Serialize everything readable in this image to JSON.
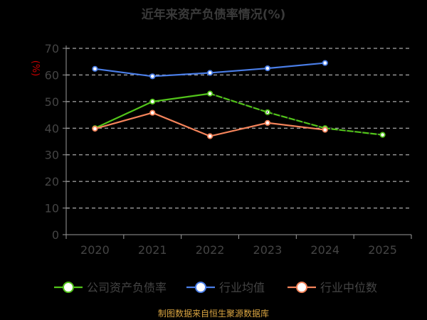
{
  "chart_data": {
    "type": "line",
    "title": "近年来资产负债率情况(%)",
    "ylabel": "(%)",
    "categories": [
      "2020",
      "2021",
      "2022",
      "2023",
      "2024",
      "2025"
    ],
    "ylim": [
      0,
      70
    ],
    "yticks": [
      0,
      10,
      20,
      30,
      40,
      50,
      60,
      70
    ],
    "grid": true,
    "legend_position": "bottom",
    "series": [
      {
        "name": "公司资产负债率",
        "color": "#52c41a",
        "values": [
          40.0,
          50.0,
          53.0,
          46.0,
          40.0,
          37.5
        ]
      },
      {
        "name": "行业均值",
        "color": "#4a7ee8",
        "values": [
          62.3,
          59.5,
          60.8,
          62.5,
          64.5,
          null
        ]
      },
      {
        "name": "行业中位数",
        "color": "#f5845b",
        "values": [
          39.8,
          45.8,
          37.0,
          42.0,
          39.4,
          null
        ]
      }
    ]
  },
  "source": "制图数据来自恒生聚源数据库"
}
